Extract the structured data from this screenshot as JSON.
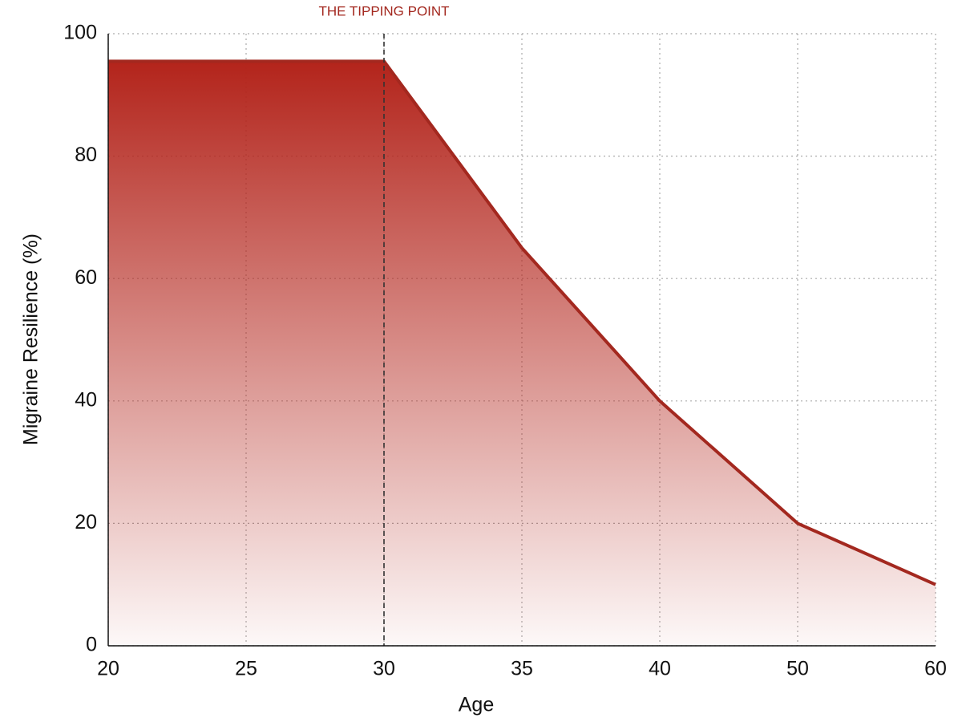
{
  "chart_data": {
    "type": "area",
    "x_label": "Age",
    "y_label": "Migraine Resilience (%)",
    "categories": [
      "20",
      "25",
      "30",
      "35",
      "40",
      "50",
      "60"
    ],
    "values": [
      95.5,
      95.5,
      95.5,
      65,
      40,
      20,
      10
    ],
    "color": "#a3281f",
    "ylim": [
      0,
      100
    ],
    "yticks": [
      0,
      20,
      40,
      60,
      80,
      100
    ],
    "grid": true,
    "annotation": {
      "label": "THE TIPPING POINT",
      "category": "30"
    }
  }
}
